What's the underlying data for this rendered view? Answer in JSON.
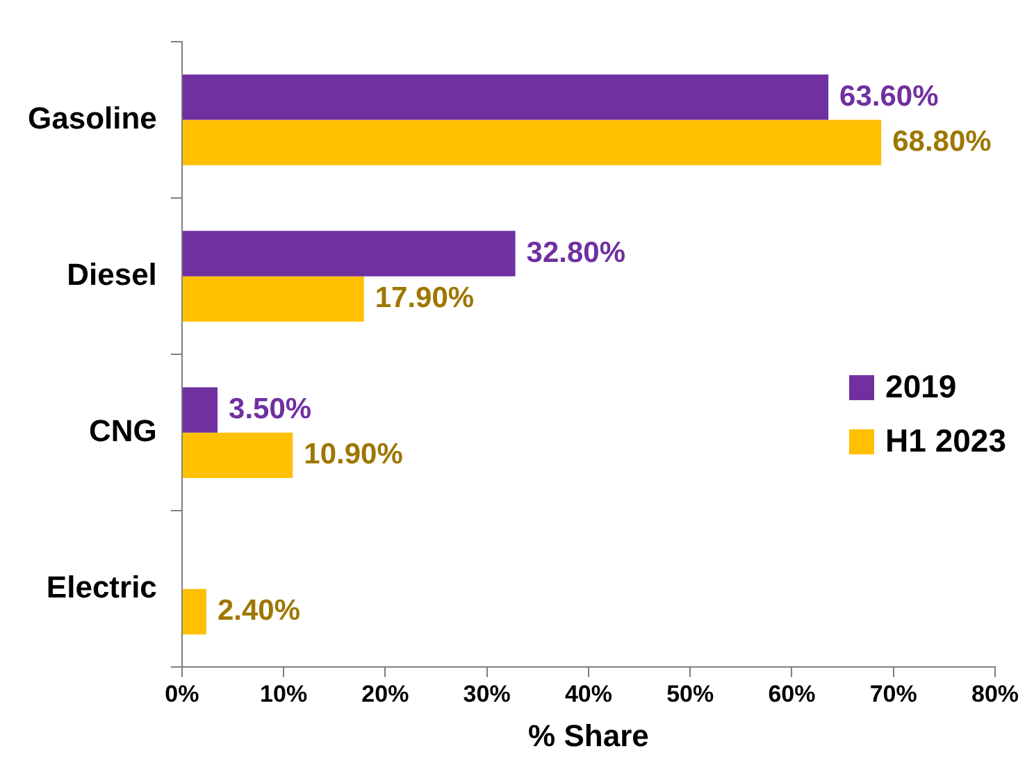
{
  "chart_data": {
    "type": "bar",
    "orientation": "horizontal",
    "xlabel": "% Share",
    "categories": [
      "Gasoline",
      "Diesel",
      "CNG",
      "Electric"
    ],
    "series": [
      {
        "name": "2019",
        "color": "#7030a0",
        "values": [
          63.6,
          32.8,
          3.5,
          null
        ],
        "value_labels": [
          "63.60%",
          "32.80%",
          "3.50%",
          null
        ]
      },
      {
        "name": "H1 2023",
        "color": "#ffc000",
        "values": [
          68.8,
          17.9,
          10.9,
          2.4
        ],
        "value_labels": [
          "68.80%",
          "17.90%",
          "10.90%",
          "2.40%"
        ]
      }
    ],
    "xlim": [
      0,
      80
    ],
    "xticks": [
      {
        "value": 0,
        "label": "0%"
      },
      {
        "value": 10,
        "label": "10%"
      },
      {
        "value": 20,
        "label": "20%"
      },
      {
        "value": 30,
        "label": "30%"
      },
      {
        "value": 40,
        "label": "40%"
      },
      {
        "value": 50,
        "label": "50%"
      },
      {
        "value": 60,
        "label": "60%"
      },
      {
        "value": 70,
        "label": "70%"
      },
      {
        "value": 80,
        "label": "80%"
      }
    ],
    "grid": false,
    "legend": "right"
  }
}
